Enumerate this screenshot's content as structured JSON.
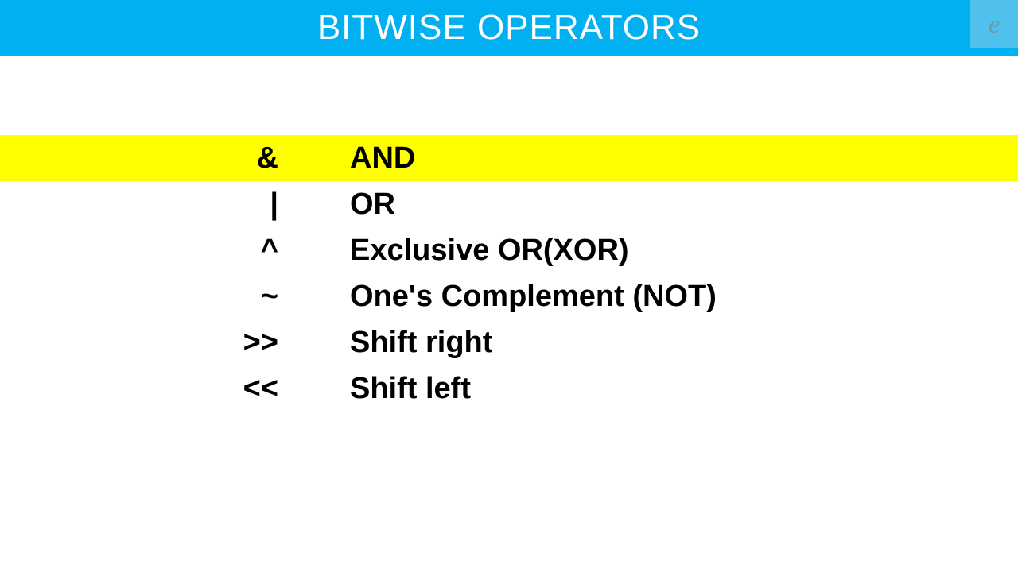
{
  "header": {
    "title": "BITWISE OPERATORS",
    "bg_color": "#00b0f0",
    "text_color": "#ffffff",
    "title_fontsize": 44
  },
  "logo": {
    "letter": "e",
    "bg_color": "rgba(200,220,230,0.4)",
    "text_color": "#6a9aad"
  },
  "operators": {
    "highlight_color": "#ffff00",
    "text_color": "#000000",
    "fontsize": 38,
    "font_weight": "bold",
    "rows": [
      {
        "symbol": "&",
        "name": "AND",
        "highlighted": true
      },
      {
        "symbol": "|",
        "name": "OR",
        "highlighted": false
      },
      {
        "symbol": "^",
        "name": "Exclusive OR(XOR)",
        "highlighted": false
      },
      {
        "symbol": "~",
        "name": "One's Complement (NOT)",
        "highlighted": false
      },
      {
        "symbol": ">>",
        "name": "Shift right",
        "highlighted": false
      },
      {
        "symbol": "<<",
        "name": "Shift left",
        "highlighted": false
      }
    ]
  }
}
